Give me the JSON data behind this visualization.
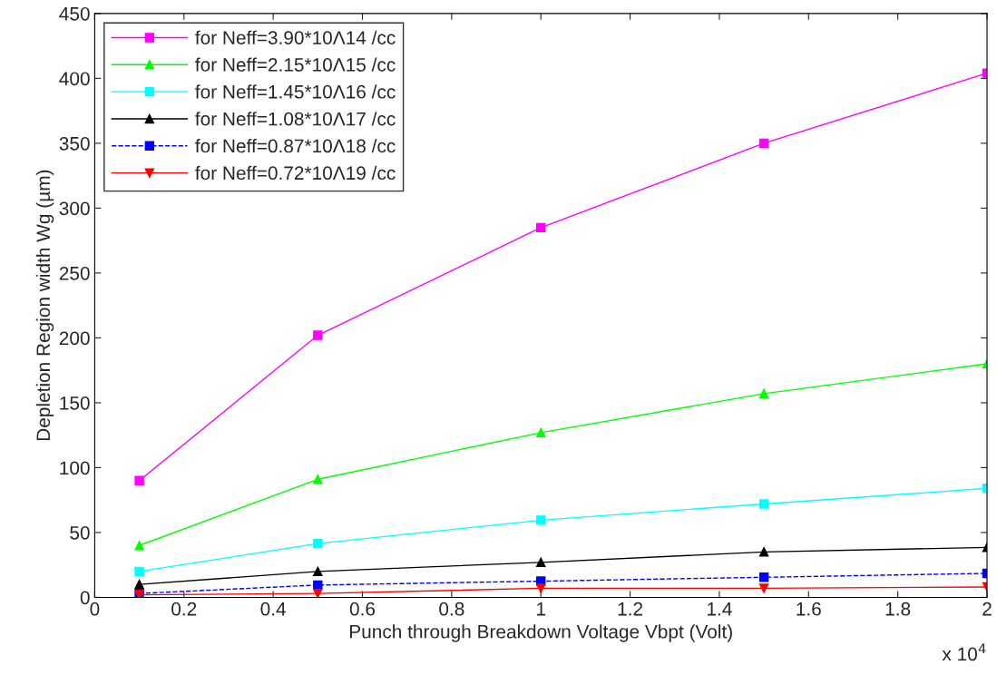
{
  "chart_data": {
    "type": "line",
    "xlabel": "Punch through Breakdown Voltage Vbpt (Volt)",
    "ylabel": "Depletion Region width Wg (µm)",
    "x": [
      0.1,
      0.5,
      1,
      1.5,
      2
    ],
    "series": [
      {
        "name": "for Neff=3.90*10Λ14 /cc",
        "color": "#ff00ff",
        "marker": "square",
        "line_style": "solid",
        "values": [
          90,
          202,
          285,
          350,
          404
        ]
      },
      {
        "name": "for Neff=2.15*10Λ15 /cc",
        "color": "#00ff00",
        "marker": "triangle",
        "line_style": "solid",
        "values": [
          40,
          91,
          127,
          157,
          180
        ]
      },
      {
        "name": "for Neff=1.45*10Λ16 /cc",
        "color": "#00ffff",
        "marker": "square",
        "line_style": "solid",
        "values": [
          20,
          41.5,
          59.5,
          72,
          84
        ]
      },
      {
        "name": "for Neff=1.08*10Λ17 /cc",
        "color": "#000000",
        "marker": "triangle",
        "line_style": "solid",
        "values": [
          10,
          20,
          27,
          35,
          38.5
        ]
      },
      {
        "name": "for Neff=0.87*10Λ18 /cc",
        "color": "#0000ff",
        "marker": "square",
        "line_style": "dashed",
        "values": [
          3,
          9.5,
          12.5,
          15.5,
          18.5
        ]
      },
      {
        "name": "for Neff=0.72*10Λ19 /cc",
        "color": "#ff0000",
        "marker": "triangle_down",
        "line_style": "solid",
        "values": [
          2,
          3,
          7,
          7,
          8
        ]
      }
    ],
    "xlim": [
      0,
      2
    ],
    "xticks": [
      0,
      0.2,
      0.4,
      0.6,
      0.8,
      1,
      1.2,
      1.4,
      1.6,
      1.8,
      2
    ],
    "ylim": [
      0,
      450
    ],
    "yticks": [
      0,
      50,
      100,
      150,
      200,
      250,
      300,
      350,
      400,
      450
    ],
    "annotations": [
      "x 10$^{4}$"
    ],
    "grid": false,
    "legend": "top left"
  }
}
